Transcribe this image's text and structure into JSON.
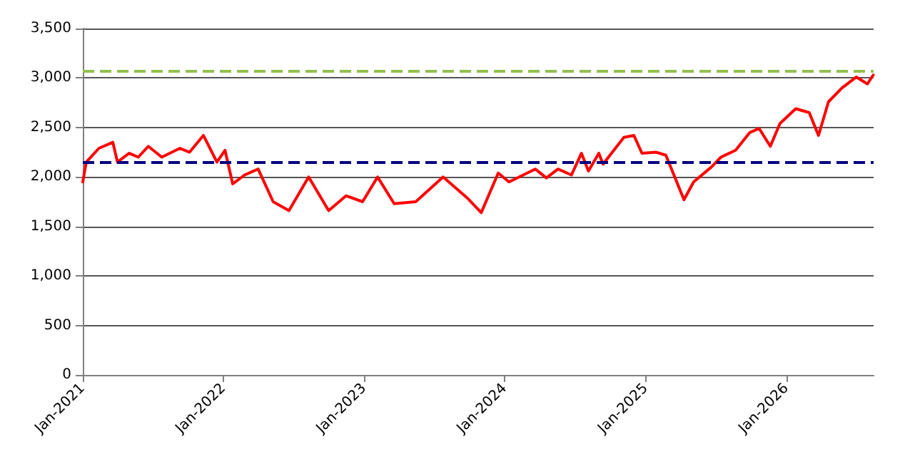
{
  "chart_data": {
    "type": "line",
    "x": [
      "2021-01-01",
      "2021-01-10",
      "2021-02-12",
      "2021-03-20",
      "2021-04-01",
      "2021-05-01",
      "2021-05-25",
      "2021-06-20",
      "2021-07-25",
      "2021-09-10",
      "2021-10-05",
      "2021-11-10",
      "2021-12-15",
      "2022-01-05",
      "2022-01-25",
      "2022-02-25",
      "2022-04-01",
      "2022-05-10",
      "2022-06-20",
      "2022-08-10",
      "2022-10-01",
      "2022-11-15",
      "2022-12-28",
      "2023-02-05",
      "2023-03-20",
      "2023-05-15",
      "2023-07-25",
      "2023-09-25",
      "2023-11-01",
      "2023-12-15",
      "2024-01-12",
      "2024-03-20",
      "2024-04-18",
      "2024-05-18",
      "2024-06-22",
      "2024-07-18",
      "2024-08-05",
      "2024-09-01",
      "2024-09-12",
      "2024-11-05",
      "2024-12-01",
      "2024-12-22",
      "2025-01-28",
      "2025-02-22",
      "2025-04-10",
      "2025-05-05",
      "2025-06-20",
      "2025-07-15",
      "2025-08-22",
      "2025-09-28",
      "2025-10-22",
      "2025-11-20",
      "2025-12-15",
      "2026-01-25",
      "2026-03-01",
      "2026-03-25",
      "2026-04-20",
      "2026-05-25",
      "2026-07-01",
      "2026-07-30",
      "2026-08-14"
    ],
    "series": [
      {
        "color": "#ff0000",
        "values": [
          1950,
          2150,
          2290,
          2350,
          2150,
          2240,
          2200,
          2310,
          2200,
          2290,
          2250,
          2420,
          2150,
          2270,
          1930,
          2020,
          2080,
          1750,
          1660,
          2000,
          1660,
          1810,
          1750,
          2000,
          1730,
          1750,
          2000,
          1790,
          1640,
          2040,
          1950,
          2080,
          1990,
          2080,
          2020,
          2240,
          2060,
          2240,
          2130,
          2400,
          2420,
          2240,
          2250,
          2220,
          1770,
          1950,
          2100,
          2200,
          2270,
          2450,
          2490,
          2310,
          2540,
          2690,
          2650,
          2420,
          2760,
          2900,
          3010,
          2940,
          3030
        ]
      }
    ],
    "xlim": [
      "2021-01-01",
      "2026-08-15"
    ],
    "xticks": [
      {
        "value": "2021-01-01",
        "label": "Jan-2021"
      },
      {
        "value": "2022-01-01",
        "label": "Jan-2022"
      },
      {
        "value": "2023-01-01",
        "label": "Jan-2023"
      },
      {
        "value": "2024-01-01",
        "label": "Jan-2024"
      },
      {
        "value": "2025-01-01",
        "label": "Jan-2025"
      },
      {
        "value": "2026-01-01",
        "label": "Jan-2026"
      }
    ],
    "ylim": [
      0,
      3500
    ],
    "yticks": [
      0,
      500,
      {
        "value": 1000,
        "label": "1,000"
      },
      {
        "value": 1500,
        "label": "1,500"
      },
      {
        "value": 2000,
        "label": "2,000"
      },
      {
        "value": 2500,
        "label": "2,500"
      },
      {
        "value": 3000,
        "label": "3,000"
      },
      {
        "value": 3500,
        "label": "3,500"
      }
    ],
    "ref_lines": [
      {
        "axis": "y",
        "value": 3075,
        "color": "#92c050",
        "line_style": "dashed"
      },
      {
        "axis": "y",
        "value": 2150,
        "color": "#000080",
        "line_style": "dashed"
      }
    ],
    "grid": "y",
    "marker": "none",
    "line_style": "solid"
  }
}
